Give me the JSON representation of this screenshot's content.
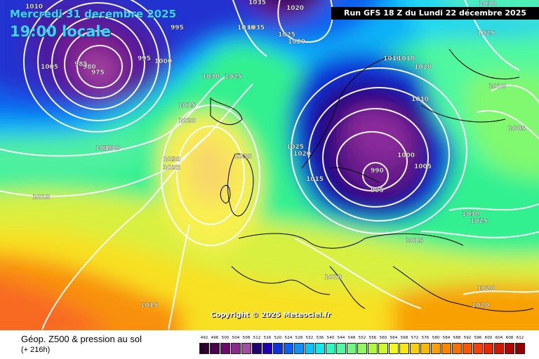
{
  "header": {
    "date": "Mercredi 31 decembre 2025",
    "time": "19:00 locale",
    "run": "Run GFS 18 Z du Lundi 22 décembre 2025"
  },
  "footer": {
    "title": "Géop. Z500 & pression au sol",
    "subtitle": "(+ 216h)",
    "copyright": "Copyright © 2025 Meteociel.fr"
  },
  "legend": {
    "labels": [
      "492",
      "496",
      "500",
      "504",
      "508",
      "512",
      "516",
      "520",
      "524",
      "528",
      "532",
      "536",
      "540",
      "544",
      "548",
      "552",
      "556",
      "560",
      "564",
      "568",
      "572",
      "576",
      "580",
      "584",
      "588",
      "592",
      "596",
      "600",
      "604",
      "608",
      "612"
    ],
    "colors": [
      "#2b002b",
      "#4a004a",
      "#6a0a6a",
      "#8a2a8a",
      "#a04ea0",
      "#200070",
      "#2000b0",
      "#1030d8",
      "#1060f0",
      "#1090f8",
      "#10c0f8",
      "#10e8f0",
      "#30f8c0",
      "#50f8a0",
      "#70f880",
      "#90f860",
      "#b0f840",
      "#d0f830",
      "#f0f820",
      "#f8e818",
      "#f8d010",
      "#f8b808",
      "#f8a000",
      "#f88800",
      "#f87000",
      "#f85800",
      "#f84000",
      "#e82800",
      "#d01800",
      "#b00800",
      "#900000"
    ]
  },
  "isobars": [
    "1010",
    "1005",
    "995",
    "985",
    "980",
    "975",
    "995",
    "1000",
    "1035",
    "1010",
    "1035",
    "1020",
    "1025",
    "1020",
    "1025",
    "1030",
    "1025",
    "1030",
    "1015",
    "1020",
    "1010",
    "1010",
    "1010",
    "1010",
    "1020",
    "1010",
    "1030",
    "1025",
    "1035",
    "1025",
    "1020",
    "1015",
    "1000",
    "990",
    "995",
    "1005",
    "1005",
    "1010",
    "1010",
    "1030",
    "1025",
    "1015",
    "1010",
    "1015",
    "1020",
    "1020"
  ]
}
